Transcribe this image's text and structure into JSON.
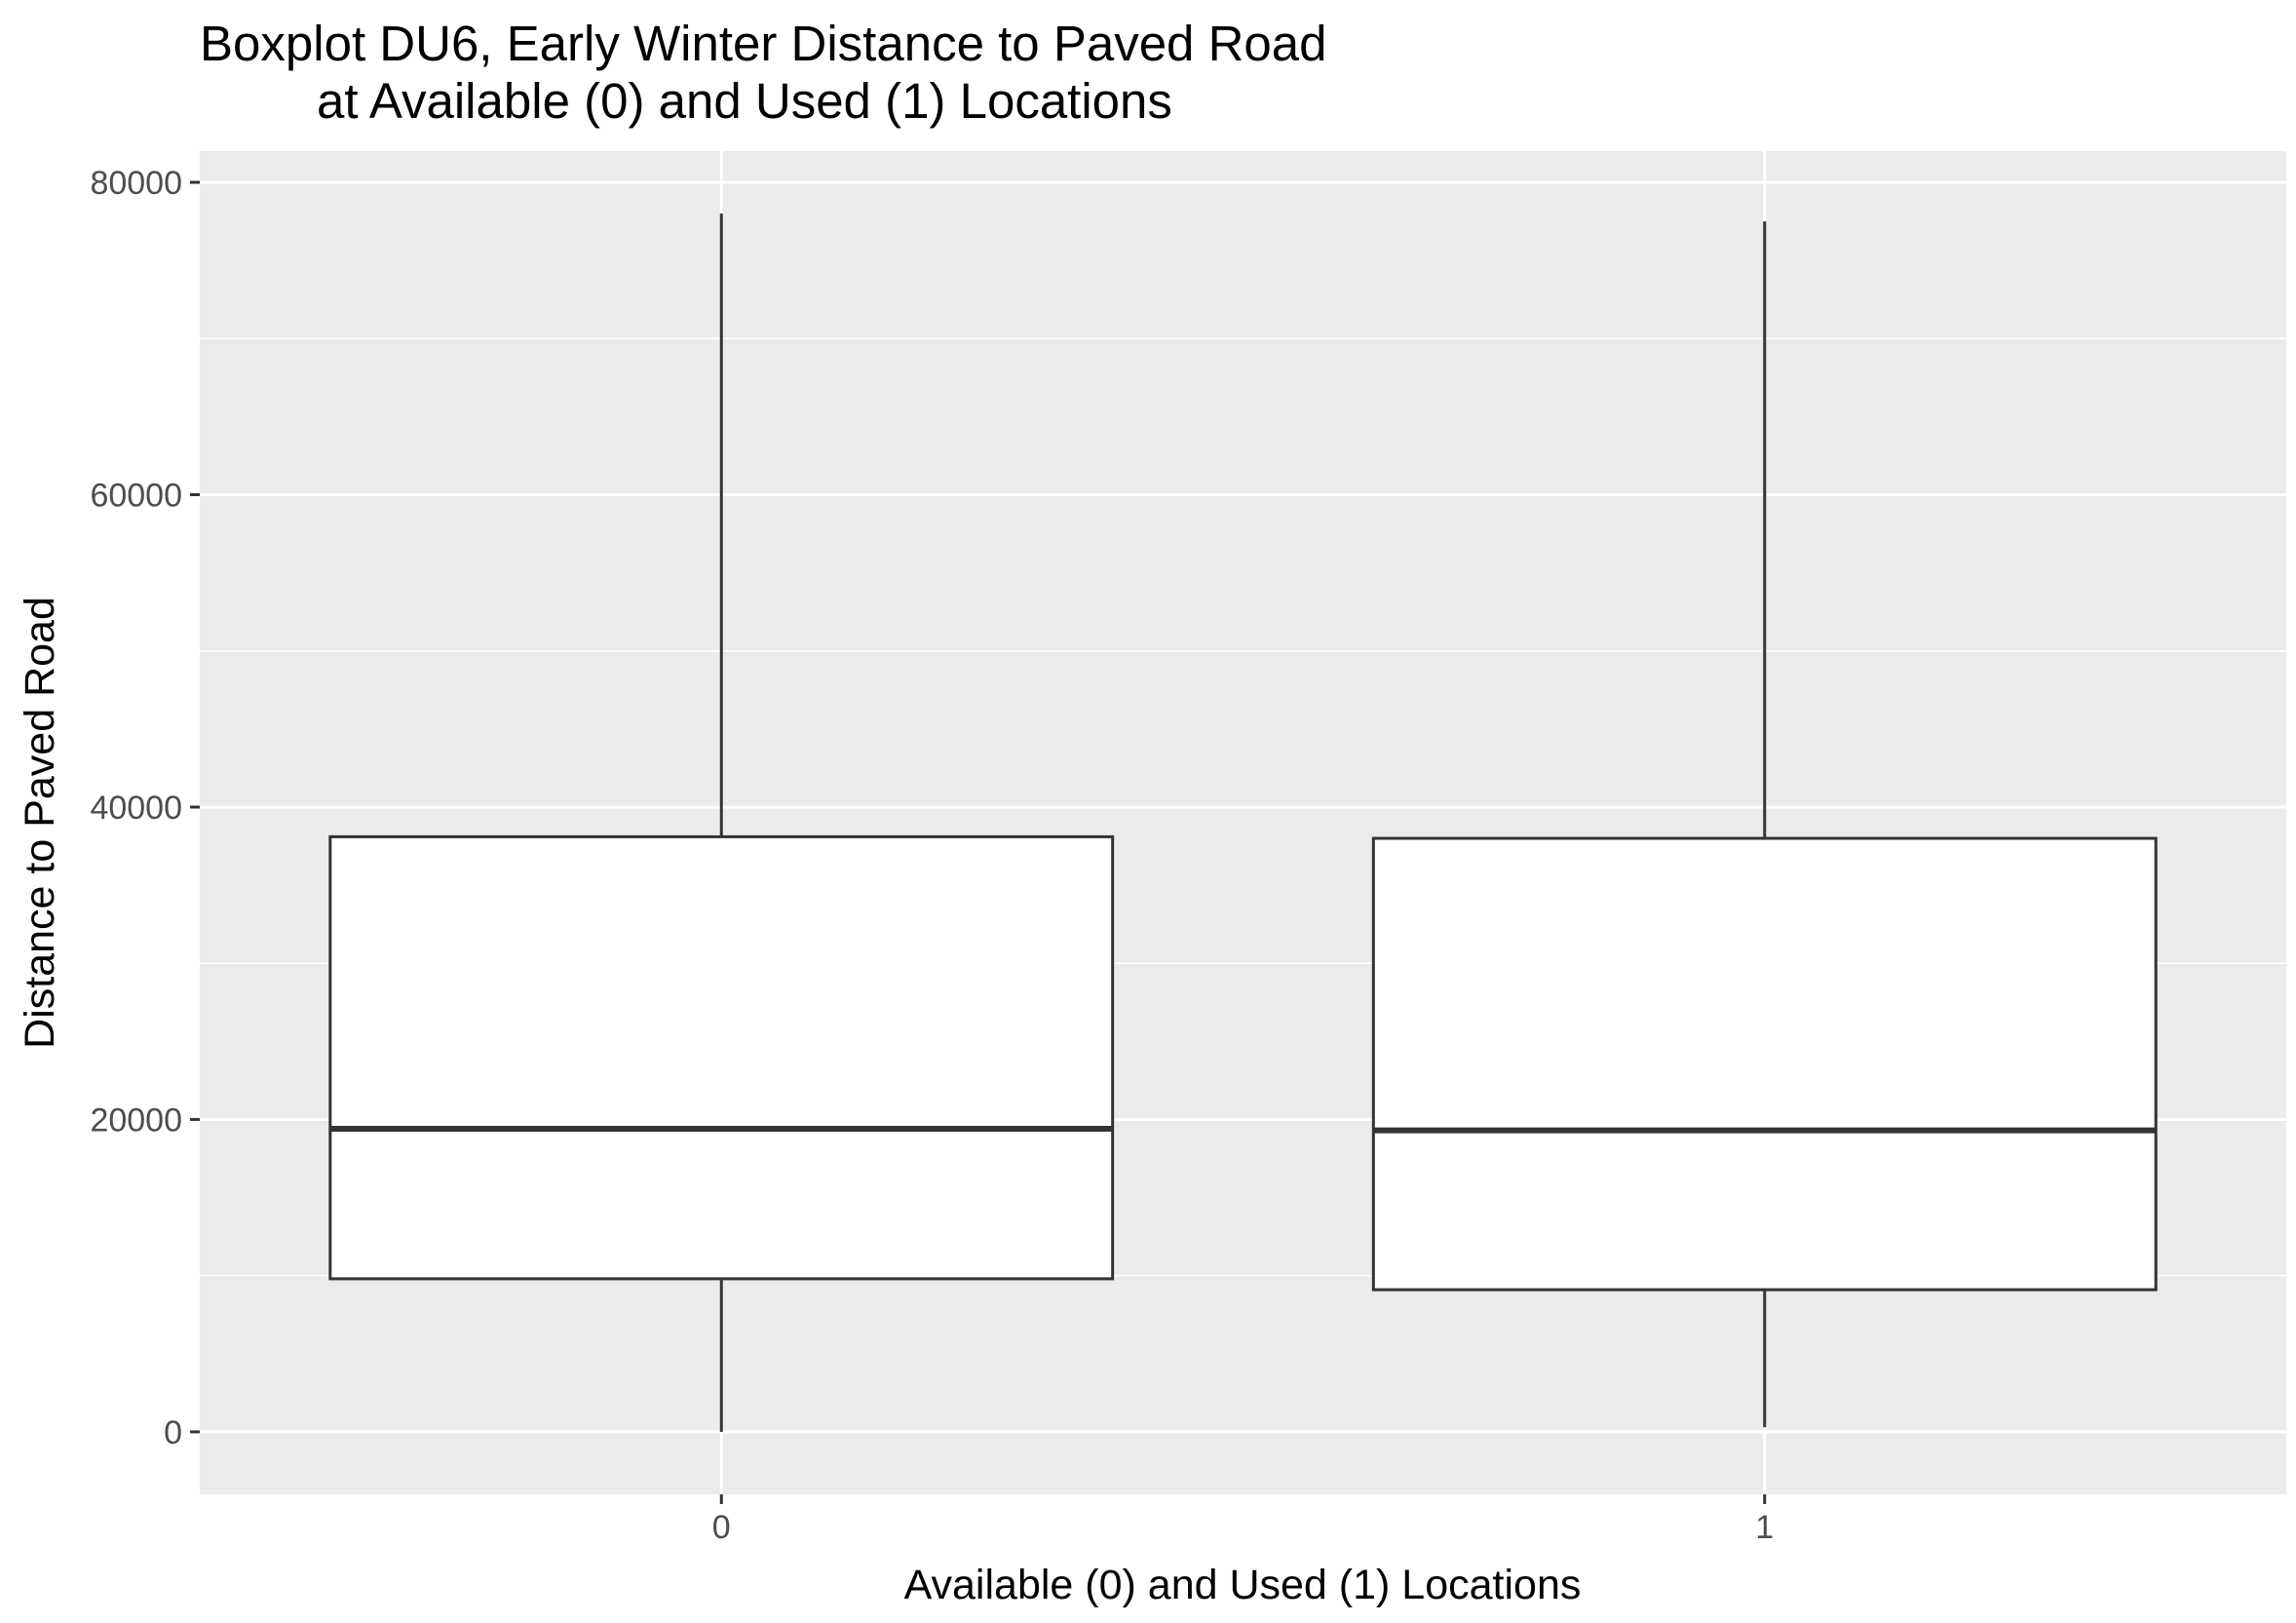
{
  "chart_data": {
    "type": "boxplot",
    "title_lines": [
      "Boxplot DU6, Early Winter Distance to Paved Road",
      "at Available (0) and Used (1) Locations"
    ],
    "xlabel": "Available (0) and Used (1) Locations",
    "ylabel": "Distance to Paved Road",
    "categories": [
      "0",
      "1"
    ],
    "boxes": [
      {
        "category": "0",
        "min": 0,
        "q1": 9800,
        "median": 19400,
        "q3": 38100,
        "max": 78000
      },
      {
        "category": "1",
        "min": 300,
        "q1": 9100,
        "median": 19300,
        "q3": 38000,
        "max": 77500
      }
    ],
    "ylim": [
      -4000,
      82000
    ],
    "yticks": [
      0,
      20000,
      40000,
      60000,
      80000
    ],
    "ytick_labels": [
      "0",
      "20000",
      "40000",
      "60000",
      "80000"
    ],
    "yminor": [
      10000,
      30000,
      50000,
      70000
    ],
    "grid": true,
    "colors": {
      "panel": "#ebebeb",
      "grid": "#ffffff",
      "box_fill": "#ffffff",
      "box_stroke": "#333333",
      "tick_text": "#4d4d4d"
    }
  }
}
